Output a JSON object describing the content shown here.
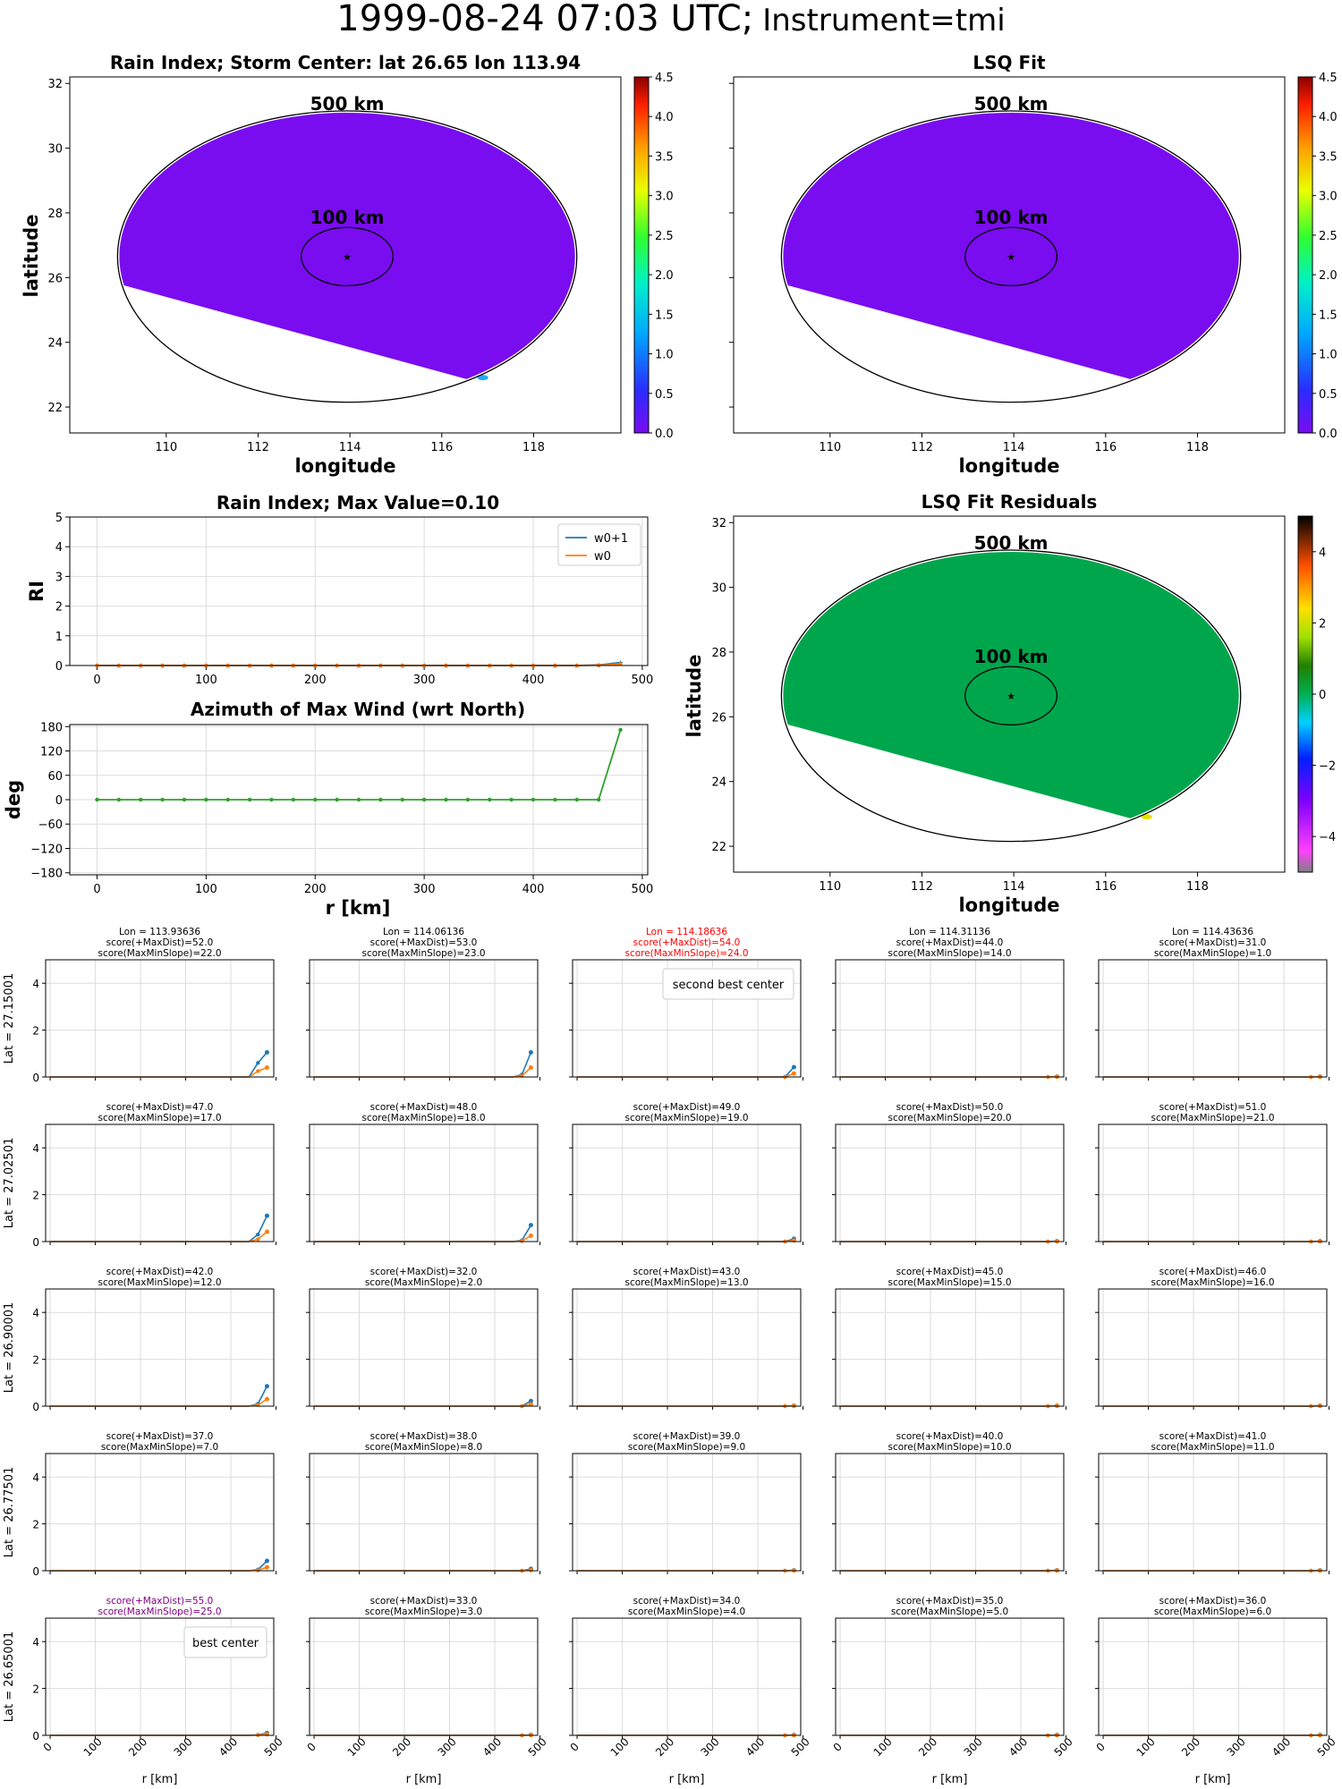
{
  "suptitle": {
    "main": "1999-08-24 07:03 UTC;",
    "instrument": "Instrument=tmi"
  },
  "colors": {
    "w0p1": "#1f77b4",
    "w0": "#ff7f0e",
    "azimuth": "#2ca02c",
    "field": "#7a0cf0",
    "residual": "#00a64c",
    "highlight": "#ff0000",
    "best": "#800080"
  },
  "chart_data": [
    {
      "id": "rain-index-map",
      "type": "heatmap",
      "title": "Rain Index; Storm Center: lat 26.65 lon 113.94",
      "xlabel": "longitude",
      "ylabel": "latitude",
      "xlim": [
        107.9,
        119.9
      ],
      "ylim": [
        21.2,
        32.2
      ],
      "xticks": [
        "110",
        "112",
        "114",
        "116",
        "118"
      ],
      "yticks": [
        "22",
        "24",
        "26",
        "28",
        "30",
        "32"
      ],
      "center": {
        "lon": 113.94,
        "lat": 26.65
      },
      "rings": [
        {
          "label": "500 km",
          "lon_r": 5.0,
          "lat_r": 4.5
        },
        {
          "label": "100 km",
          "lon_r": 1.0,
          "lat_r": 0.9
        }
      ],
      "field_value": 0.0,
      "colorbar": {
        "min": 0.0,
        "max": 4.5,
        "ticks": [
          "0.0",
          "0.5",
          "1.0",
          "1.5",
          "2.0",
          "2.5",
          "3.0",
          "3.5",
          "4.0",
          "4.5"
        ]
      }
    },
    {
      "id": "lsq-fit-map",
      "type": "heatmap",
      "title": "LSQ Fit",
      "xlabel": "longitude",
      "ylabel": "",
      "xlim": [
        107.9,
        119.9
      ],
      "ylim": [
        21.2,
        32.2
      ],
      "xticks": [
        "110",
        "112",
        "114",
        "116",
        "118"
      ],
      "center": {
        "lon": 113.94,
        "lat": 26.65
      },
      "rings": [
        {
          "label": "500 km",
          "lon_r": 5.0,
          "lat_r": 4.5
        },
        {
          "label": "100 km",
          "lon_r": 1.0,
          "lat_r": 0.9
        }
      ],
      "field_value": 0.0,
      "colorbar": {
        "min": 0.0,
        "max": 4.5,
        "ticks": [
          "0.0",
          "0.5",
          "1.0",
          "1.5",
          "2.0",
          "2.5",
          "3.0",
          "3.5",
          "4.0",
          "4.5"
        ]
      }
    },
    {
      "id": "rain-index-profile",
      "type": "line",
      "title": "Rain Index; Max Value=0.10",
      "xlabel": "",
      "ylabel": "RI",
      "xlim": [
        -25,
        505
      ],
      "ylim": [
        0,
        5
      ],
      "xticks": [
        "0",
        "100",
        "200",
        "300",
        "400",
        "500"
      ],
      "yticks": [
        "0",
        "1",
        "2",
        "3",
        "4",
        "5"
      ],
      "legend": "top-right",
      "x": [
        0,
        20,
        40,
        60,
        80,
        100,
        120,
        140,
        160,
        180,
        200,
        220,
        240,
        260,
        280,
        300,
        320,
        340,
        360,
        380,
        400,
        420,
        440,
        460,
        480
      ],
      "series": [
        {
          "name": "w0+1",
          "values": [
            0,
            0,
            0,
            0,
            0,
            0,
            0,
            0,
            0,
            0,
            0,
            0,
            0,
            0,
            0,
            0,
            0,
            0,
            0,
            0,
            0,
            0,
            0,
            0.02,
            0.1
          ]
        },
        {
          "name": "w0",
          "values": [
            0,
            0,
            0,
            0,
            0,
            0,
            0,
            0,
            0,
            0,
            0,
            0,
            0,
            0,
            0,
            0,
            0,
            0,
            0,
            0,
            0,
            0,
            0,
            0.01,
            0.05
          ]
        }
      ]
    },
    {
      "id": "azimuth-profile",
      "type": "line",
      "title": "Azimuth of Max Wind (wrt North)",
      "xlabel": "r [km]",
      "ylabel": "deg",
      "xlim": [
        -25,
        505
      ],
      "ylim": [
        -185,
        185
      ],
      "xticks": [
        "0",
        "100",
        "200",
        "300",
        "400",
        "500"
      ],
      "yticks": [
        "−180",
        "−120",
        "−60",
        "0",
        "60",
        "120",
        "180"
      ],
      "x": [
        0,
        20,
        40,
        60,
        80,
        100,
        120,
        140,
        160,
        180,
        200,
        220,
        240,
        260,
        280,
        300,
        320,
        340,
        360,
        380,
        400,
        420,
        440,
        460,
        480
      ],
      "series": [
        {
          "values": [
            0,
            0,
            0,
            0,
            0,
            0,
            0,
            0,
            0,
            0,
            0,
            0,
            0,
            0,
            0,
            0,
            0,
            0,
            0,
            0,
            0,
            0,
            0,
            0,
            172
          ]
        }
      ]
    },
    {
      "id": "lsq-residuals-map",
      "type": "heatmap",
      "title": "LSQ Fit Residuals",
      "xlabel": "longitude",
      "ylabel": "latitude",
      "xlim": [
        107.9,
        119.9
      ],
      "ylim": [
        21.2,
        32.2
      ],
      "xticks": [
        "110",
        "112",
        "114",
        "116",
        "118"
      ],
      "yticks": [
        "22",
        "24",
        "26",
        "28",
        "30",
        "32"
      ],
      "center": {
        "lon": 113.94,
        "lat": 26.65
      },
      "rings": [
        {
          "label": "500 km",
          "lon_r": 5.0,
          "lat_r": 4.5
        },
        {
          "label": "100 km",
          "lon_r": 1.0,
          "lat_r": 0.9
        }
      ],
      "field_value": 0.0,
      "colorbar": {
        "min": -5,
        "max": 5,
        "ticks": [
          "−4",
          "−2",
          "0",
          "2",
          "4"
        ]
      }
    },
    {
      "id": "center-grid",
      "type": "line",
      "xlabel": "r [km]",
      "xlim": [
        -10,
        495
      ],
      "ylim": [
        0,
        5
      ],
      "xticks": [
        "0",
        "100",
        "200",
        "300",
        "400",
        "500"
      ],
      "yticks": [
        "0",
        "2",
        "4"
      ],
      "r": [
        0,
        20,
        40,
        60,
        80,
        100,
        120,
        140,
        160,
        180,
        200,
        220,
        240,
        260,
        280,
        300,
        320,
        340,
        360,
        380,
        400,
        420,
        440,
        460,
        480
      ],
      "rows": [
        {
          "lat_label": "Lat = 27.15001",
          "cells": [
            {
              "title": [
                "Lon = 113.93636",
                "score(+MaxDist)=52.0",
                "score(MaxMinSlope)=22.0"
              ],
              "tail_w0p1": [
                0.6,
                1.05
              ],
              "tail_w0": [
                0.25,
                0.4
              ]
            },
            {
              "title": [
                "Lon = 114.06136",
                "score(+MaxDist)=53.0",
                "score(MaxMinSlope)=23.0"
              ],
              "tail_w0p1": [
                0.1,
                1.05
              ],
              "tail_w0": [
                0.05,
                0.4
              ]
            },
            {
              "title": [
                "Lon = 114.18636",
                "score(+MaxDist)=54.0",
                "score(MaxMinSlope)=24.0"
              ],
              "highlight": "second",
              "legend": "second best center",
              "tail_w0p1": [
                0,
                0.42
              ],
              "tail_w0": [
                0,
                0.15
              ]
            },
            {
              "title": [
                "Lon = 114.31136",
                "score(+MaxDist)=44.0",
                "score(MaxMinSlope)=14.0"
              ],
              "tail_w0p1": [
                0,
                0.02
              ],
              "tail_w0": [
                0,
                0.01
              ]
            },
            {
              "title": [
                "Lon = 114.43636",
                "score(+MaxDist)=31.0",
                "score(MaxMinSlope)=1.0"
              ],
              "tail_w0p1": [
                0,
                0.02
              ],
              "tail_w0": [
                0,
                0.01
              ]
            }
          ]
        },
        {
          "lat_label": "Lat = 27.02501",
          "cells": [
            {
              "title": [
                "score(+MaxDist)=47.0",
                "score(MaxMinSlope)=17.0"
              ],
              "tail_w0p1": [
                0.3,
                1.1
              ],
              "tail_w0": [
                0.1,
                0.42
              ]
            },
            {
              "title": [
                "score(+MaxDist)=48.0",
                "score(MaxMinSlope)=18.0"
              ],
              "tail_w0p1": [
                0.05,
                0.7
              ],
              "tail_w0": [
                0.02,
                0.25
              ]
            },
            {
              "title": [
                "score(+MaxDist)=49.0",
                "score(MaxMinSlope)=19.0"
              ],
              "tail_w0p1": [
                0,
                0.12
              ],
              "tail_w0": [
                0,
                0.05
              ]
            },
            {
              "title": [
                "score(+MaxDist)=50.0",
                "score(MaxMinSlope)=20.0"
              ],
              "tail_w0p1": [
                0,
                0.02
              ],
              "tail_w0": [
                0,
                0.01
              ]
            },
            {
              "title": [
                "score(+MaxDist)=51.0",
                "score(MaxMinSlope)=21.0"
              ],
              "tail_w0p1": [
                0,
                0.02
              ],
              "tail_w0": [
                0,
                0.01
              ]
            }
          ]
        },
        {
          "lat_label": "Lat = 26.90001",
          "cells": [
            {
              "title": [
                "score(+MaxDist)=42.0",
                "score(MaxMinSlope)=12.0"
              ],
              "tail_w0p1": [
                0.1,
                0.85
              ],
              "tail_w0": [
                0.05,
                0.3
              ]
            },
            {
              "title": [
                "score(+MaxDist)=32.0",
                "score(MaxMinSlope)=2.0"
              ],
              "tail_w0p1": [
                0,
                0.22
              ],
              "tail_w0": [
                0,
                0.08
              ]
            },
            {
              "title": [
                "score(+MaxDist)=43.0",
                "score(MaxMinSlope)=13.0"
              ],
              "tail_w0p1": [
                0,
                0.02
              ],
              "tail_w0": [
                0,
                0.01
              ]
            },
            {
              "title": [
                "score(+MaxDist)=45.0",
                "score(MaxMinSlope)=15.0"
              ],
              "tail_w0p1": [
                0,
                0.02
              ],
              "tail_w0": [
                0,
                0.01
              ]
            },
            {
              "title": [
                "score(+MaxDist)=46.0",
                "score(MaxMinSlope)=16.0"
              ],
              "tail_w0p1": [
                0,
                0.02
              ],
              "tail_w0": [
                0,
                0.01
              ]
            }
          ]
        },
        {
          "lat_label": "Lat = 26.77501",
          "cells": [
            {
              "title": [
                "score(+MaxDist)=37.0",
                "score(MaxMinSlope)=7.0"
              ],
              "tail_w0p1": [
                0.05,
                0.42
              ],
              "tail_w0": [
                0.02,
                0.15
              ]
            },
            {
              "title": [
                "score(+MaxDist)=38.0",
                "score(MaxMinSlope)=8.0"
              ],
              "tail_w0p1": [
                0,
                0.08
              ],
              "tail_w0": [
                0,
                0.03
              ]
            },
            {
              "title": [
                "score(+MaxDist)=39.0",
                "score(MaxMinSlope)=9.0"
              ],
              "tail_w0p1": [
                0,
                0.02
              ],
              "tail_w0": [
                0,
                0.01
              ]
            },
            {
              "title": [
                "score(+MaxDist)=40.0",
                "score(MaxMinSlope)=10.0"
              ],
              "tail_w0p1": [
                0,
                0.02
              ],
              "tail_w0": [
                0,
                0.01
              ]
            },
            {
              "title": [
                "score(+MaxDist)=41.0",
                "score(MaxMinSlope)=11.0"
              ],
              "tail_w0p1": [
                0,
                0.02
              ],
              "tail_w0": [
                0,
                0.01
              ]
            }
          ]
        },
        {
          "lat_label": "Lat = 26.65001",
          "cells": [
            {
              "title": [
                "score(+MaxDist)=55.0",
                "score(MaxMinSlope)=25.0"
              ],
              "highlight": "best",
              "legend": "best center",
              "tail_w0p1": [
                0.02,
                0.1
              ],
              "tail_w0": [
                0.01,
                0.05
              ]
            },
            {
              "title": [
                "score(+MaxDist)=33.0",
                "score(MaxMinSlope)=3.0"
              ],
              "tail_w0p1": [
                0,
                0.02
              ],
              "tail_w0": [
                0,
                0.01
              ]
            },
            {
              "title": [
                "score(+MaxDist)=34.0",
                "score(MaxMinSlope)=4.0"
              ],
              "tail_w0p1": [
                0,
                0.02
              ],
              "tail_w0": [
                0,
                0.01
              ]
            },
            {
              "title": [
                "score(+MaxDist)=35.0",
                "score(MaxMinSlope)=5.0"
              ],
              "tail_w0p1": [
                0,
                0.02
              ],
              "tail_w0": [
                0,
                0.01
              ]
            },
            {
              "title": [
                "score(+MaxDist)=36.0",
                "score(MaxMinSlope)=6.0"
              ],
              "tail_w0p1": [
                0,
                0.02
              ],
              "tail_w0": [
                0,
                0.01
              ]
            }
          ]
        }
      ]
    }
  ]
}
